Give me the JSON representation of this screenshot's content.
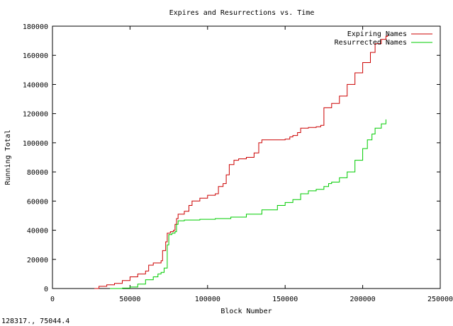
{
  "status": {
    "coordinate_readout": "128317., 75044.4"
  },
  "chart_data": {
    "type": "line",
    "title": "Expires and Resurrections vs. Time",
    "xlabel": "Block Number",
    "ylabel": "Running Total",
    "xlim": [
      0,
      250000
    ],
    "ylim": [
      0,
      180000
    ],
    "x_ticks": [
      0,
      50000,
      100000,
      150000,
      200000,
      250000
    ],
    "y_ticks": [
      0,
      20000,
      40000,
      60000,
      80000,
      100000,
      120000,
      140000,
      160000,
      180000
    ],
    "grid": false,
    "legend": "top-right",
    "series": [
      {
        "name": "Expiring Names",
        "color": "#cc0000",
        "points": [
          [
            27000,
            0
          ],
          [
            30000,
            1500
          ],
          [
            35000,
            2500
          ],
          [
            40000,
            3500
          ],
          [
            45000,
            5500
          ],
          [
            50000,
            8000
          ],
          [
            55000,
            10000
          ],
          [
            60000,
            12000
          ],
          [
            62000,
            16000
          ],
          [
            65000,
            17500
          ],
          [
            70000,
            19000
          ],
          [
            71000,
            26000
          ],
          [
            73000,
            32000
          ],
          [
            74000,
            38000
          ],
          [
            76000,
            39000
          ],
          [
            78000,
            40000
          ],
          [
            79000,
            44000
          ],
          [
            80000,
            48000
          ],
          [
            81000,
            51000
          ],
          [
            85000,
            53000
          ],
          [
            88000,
            57000
          ],
          [
            90000,
            60000
          ],
          [
            95000,
            62000
          ],
          [
            100000,
            64000
          ],
          [
            105000,
            65000
          ],
          [
            107000,
            70000
          ],
          [
            110000,
            72000
          ],
          [
            112000,
            78000
          ],
          [
            114000,
            85000
          ],
          [
            117000,
            88000
          ],
          [
            120000,
            89000
          ],
          [
            125000,
            90000
          ],
          [
            128000,
            90000
          ],
          [
            130000,
            93000
          ],
          [
            133000,
            100000
          ],
          [
            135000,
            102000
          ],
          [
            140000,
            102000
          ],
          [
            150000,
            102500
          ],
          [
            153000,
            104000
          ],
          [
            155000,
            105000
          ],
          [
            158000,
            107000
          ],
          [
            160000,
            110000
          ],
          [
            165000,
            110500
          ],
          [
            170000,
            111000
          ],
          [
            173000,
            112000
          ],
          [
            175000,
            124000
          ],
          [
            180000,
            127000
          ],
          [
            185000,
            132000
          ],
          [
            190000,
            140000
          ],
          [
            195000,
            148000
          ],
          [
            200000,
            155000
          ],
          [
            205000,
            162000
          ],
          [
            208000,
            168000
          ],
          [
            212000,
            171000
          ],
          [
            215000,
            173000
          ],
          [
            216000,
            174000
          ]
        ]
      },
      {
        "name": "Resurrected Names",
        "color": "#00cc00",
        "points": [
          [
            37000,
            0
          ],
          [
            45000,
            300
          ],
          [
            50000,
            1000
          ],
          [
            55000,
            3000
          ],
          [
            60000,
            6000
          ],
          [
            65000,
            8000
          ],
          [
            68000,
            10000
          ],
          [
            70000,
            11000
          ],
          [
            72000,
            14000
          ],
          [
            74000,
            30000
          ],
          [
            75000,
            37000
          ],
          [
            77000,
            38000
          ],
          [
            79000,
            39000
          ],
          [
            80000,
            44000
          ],
          [
            81000,
            46500
          ],
          [
            85000,
            47000
          ],
          [
            95000,
            47500
          ],
          [
            105000,
            48000
          ],
          [
            115000,
            49000
          ],
          [
            125000,
            51000
          ],
          [
            135000,
            54000
          ],
          [
            145000,
            57000
          ],
          [
            150000,
            59000
          ],
          [
            155000,
            61000
          ],
          [
            160000,
            65000
          ],
          [
            165000,
            67000
          ],
          [
            170000,
            68000
          ],
          [
            175000,
            70000
          ],
          [
            178000,
            72000
          ],
          [
            180000,
            73000
          ],
          [
            185000,
            76000
          ],
          [
            190000,
            80000
          ],
          [
            195000,
            88000
          ],
          [
            200000,
            96000
          ],
          [
            203000,
            102000
          ],
          [
            206000,
            106000
          ],
          [
            208000,
            110000
          ],
          [
            212000,
            113000
          ],
          [
            215000,
            116000
          ]
        ]
      }
    ]
  }
}
